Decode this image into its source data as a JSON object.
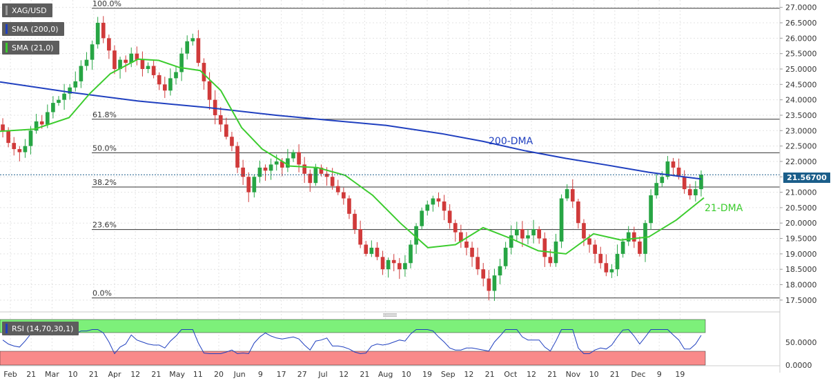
{
  "symbol": "XAG/USD",
  "indicators": {
    "sma200_label": "SMA (200,0)",
    "sma21_label": "SMA (21,0)",
    "rsi_label": "RSI (14,70,30,1)"
  },
  "colors": {
    "up_candle": "#27a544",
    "down_candle": "#d03a3a",
    "sma200": "#1f3fbf",
    "sma21": "#3ccc2e",
    "fib_line": "#333333",
    "rsi_line": "#1f3fbf",
    "rsi_overbought_fill": "#7df07a",
    "rsi_oversold_fill": "#f98a8a",
    "price_tag": "#1b5e8a"
  },
  "chart_data": {
    "type": "candlestick",
    "x_tick_labels": [
      "Feb",
      "21",
      "Mar",
      "10",
      "21",
      "Apr",
      "12",
      "21",
      "May",
      "11",
      "20",
      "Jun",
      "9",
      "17",
      "27",
      "Jul",
      "12",
      "21",
      "Aug",
      "10",
      "19",
      "Sep",
      "12",
      "21",
      "Oct",
      "12",
      "21",
      "Nov",
      "10",
      "21",
      "Dec",
      "9",
      "19"
    ],
    "y_axis": {
      "ylim": [
        17.25,
        27.15
      ],
      "ticks": [
        "27.0000",
        "26.5000",
        "26.0000",
        "25.5000",
        "25.0000",
        "24.5000",
        "24.0000",
        "23.5000",
        "23.0000",
        "22.5000",
        "22.0000",
        "21.5000",
        "21.0000",
        "20.5000",
        "20.0000",
        "19.5000",
        "19.0000",
        "18.5000",
        "18.0000",
        "17.5000"
      ]
    },
    "last_price": "21.56700",
    "fibonacci_levels": [
      {
        "label": "100.0%",
        "price": 26.97
      },
      {
        "label": "61.8%",
        "price": 23.37
      },
      {
        "label": "50.0%",
        "price": 22.28
      },
      {
        "label": "38.2%",
        "price": 21.17
      },
      {
        "label": "23.6%",
        "price": 19.79
      },
      {
        "label": "0.0%",
        "price": 17.57
      }
    ],
    "annotations": [
      {
        "text": "200-DMA"
      },
      {
        "text": "21-DMA"
      }
    ],
    "candle_closes_approx": [
      23.0,
      22.6,
      22.4,
      22.3,
      22.5,
      23.0,
      23.3,
      23.2,
      23.6,
      23.9,
      24.0,
      24.2,
      24.4,
      24.6,
      25.1,
      25.3,
      25.8,
      26.5,
      26.0,
      25.6,
      25.0,
      25.3,
      25.2,
      25.5,
      25.3,
      25.0,
      25.1,
      24.8,
      24.5,
      24.3,
      24.7,
      24.9,
      25.5,
      25.9,
      26.0,
      25.2,
      24.6,
      24.0,
      23.5,
      23.2,
      22.8,
      22.5,
      21.8,
      21.5,
      21.0,
      21.5,
      21.8,
      21.7,
      21.9,
      22.0,
      21.8,
      22.1,
      22.3,
      21.9,
      21.6,
      21.3,
      21.8,
      21.6,
      21.5,
      21.2,
      21.0,
      20.8,
      20.3,
      19.8,
      19.3,
      19.0,
      19.2,
      18.9,
      18.5,
      18.8,
      18.7,
      18.5,
      18.7,
      19.3,
      19.9,
      20.4,
      20.6,
      20.8,
      20.7,
      20.4,
      20.0,
      19.7,
      19.4,
      19.2,
      18.9,
      18.5,
      18.2,
      17.8,
      18.3,
      18.6,
      19.2,
      19.6,
      19.8,
      19.5,
      19.6,
      19.8,
      19.5,
      18.9,
      18.7,
      19.4,
      20.8,
      21.1,
      20.7,
      20.0,
      19.5,
      19.3,
      19.0,
      18.7,
      18.4,
      18.5,
      19.0,
      19.4,
      19.7,
      19.4,
      19.0,
      20.0,
      20.9,
      21.3,
      21.5,
      22.0,
      21.8,
      21.5,
      21.1,
      20.9,
      21.1,
      21.57
    ],
    "sma200_approx": [
      [
        0,
        24.58
      ],
      [
        100,
        24.25
      ],
      [
        200,
        23.96
      ],
      [
        300,
        23.75
      ],
      [
        400,
        23.5
      ],
      [
        480,
        23.33
      ],
      [
        560,
        23.17
      ],
      [
        640,
        22.9
      ],
      [
        700,
        22.65
      ],
      [
        760,
        22.35
      ],
      [
        820,
        22.1
      ],
      [
        880,
        21.88
      ],
      [
        940,
        21.65
      ],
      [
        980,
        21.53
      ],
      [
        1016,
        21.43
      ]
    ],
    "sma21_approx": [
      [
        0,
        22.98
      ],
      [
        50,
        23.05
      ],
      [
        100,
        23.42
      ],
      [
        130,
        24.2
      ],
      [
        160,
        24.85
      ],
      [
        200,
        25.32
      ],
      [
        230,
        25.28
      ],
      [
        260,
        25.05
      ],
      [
        290,
        24.95
      ],
      [
        320,
        24.3
      ],
      [
        350,
        23.1
      ],
      [
        380,
        22.4
      ],
      [
        420,
        21.85
      ],
      [
        460,
        21.8
      ],
      [
        500,
        21.55
      ],
      [
        540,
        20.9
      ],
      [
        580,
        20.0
      ],
      [
        620,
        19.2
      ],
      [
        660,
        19.3
      ],
      [
        700,
        19.85
      ],
      [
        740,
        19.5
      ],
      [
        780,
        19.1
      ],
      [
        820,
        19.0
      ],
      [
        860,
        19.65
      ],
      [
        900,
        19.45
      ],
      [
        940,
        19.55
      ],
      [
        980,
        20.1
      ],
      [
        1020,
        20.82
      ]
    ],
    "rsi": {
      "ylim": [
        0,
        100
      ],
      "ticks": [
        "50.0000",
        "0.0000"
      ],
      "overbought": 70,
      "oversold": 30
    }
  }
}
